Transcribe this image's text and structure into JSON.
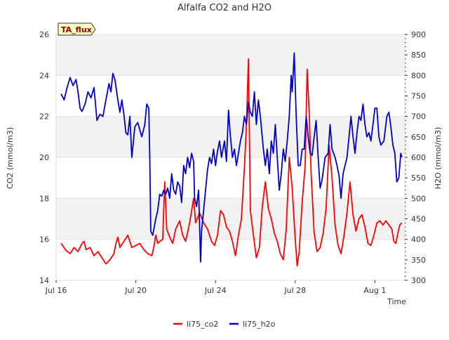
{
  "chart_data": {
    "type": "line",
    "title": "Alfalfa CO2 and H2O",
    "xlabel": "Time",
    "ylabel_left": "CO2 (mmol/m3)",
    "ylabel_right": "H2O (mmol/m3)",
    "badge": "TA_flux",
    "x_ticks": [
      "Jul 16",
      "Jul 20",
      "Jul 24",
      "Jul 28",
      "Aug 1"
    ],
    "x_tick_days": [
      0,
      4,
      8,
      12,
      16
    ],
    "xlim_days": [
      0,
      17.5
    ],
    "ylim_left": [
      14,
      26
    ],
    "yticks_left": [
      14,
      16,
      18,
      20,
      22,
      24,
      26
    ],
    "ylim_right": [
      300,
      900
    ],
    "yticks_right": [
      300,
      350,
      400,
      450,
      500,
      550,
      600,
      650,
      700,
      750,
      800,
      850,
      900
    ],
    "grid": "horizontal bands",
    "legend_position": "bottom-center",
    "series": [
      {
        "name": "li75_co2",
        "axis": "left",
        "color": "#ff0000",
        "points": [
          [
            0.25,
            15.8
          ],
          [
            0.5,
            15.45
          ],
          [
            0.7,
            15.3
          ],
          [
            0.9,
            15.6
          ],
          [
            1.1,
            15.4
          ],
          [
            1.3,
            15.8
          ],
          [
            1.4,
            15.9
          ],
          [
            1.5,
            15.5
          ],
          [
            1.7,
            15.6
          ],
          [
            1.9,
            15.2
          ],
          [
            2.1,
            15.4
          ],
          [
            2.3,
            15.1
          ],
          [
            2.5,
            14.8
          ],
          [
            2.7,
            15.0
          ],
          [
            2.9,
            15.3
          ],
          [
            3.0,
            15.8
          ],
          [
            3.1,
            16.1
          ],
          [
            3.2,
            15.6
          ],
          [
            3.4,
            15.9
          ],
          [
            3.6,
            16.2
          ],
          [
            3.8,
            15.6
          ],
          [
            4.0,
            15.7
          ],
          [
            4.2,
            15.8
          ],
          [
            4.4,
            15.5
          ],
          [
            4.6,
            15.3
          ],
          [
            4.8,
            15.2
          ],
          [
            4.9,
            15.6
          ],
          [
            5.0,
            16.2
          ],
          [
            5.1,
            15.8
          ],
          [
            5.2,
            15.9
          ],
          [
            5.35,
            16.0
          ],
          [
            5.45,
            18.8
          ],
          [
            5.55,
            16.5
          ],
          [
            5.7,
            16.1
          ],
          [
            5.85,
            15.8
          ],
          [
            6.0,
            16.5
          ],
          [
            6.2,
            16.9
          ],
          [
            6.35,
            16.2
          ],
          [
            6.5,
            15.9
          ],
          [
            6.7,
            16.8
          ],
          [
            6.9,
            18.0
          ],
          [
            7.0,
            16.8
          ],
          [
            7.2,
            17.3
          ],
          [
            7.4,
            16.8
          ],
          [
            7.6,
            16.5
          ],
          [
            7.8,
            15.9
          ],
          [
            7.95,
            15.7
          ],
          [
            8.1,
            16.2
          ],
          [
            8.25,
            17.4
          ],
          [
            8.4,
            17.2
          ],
          [
            8.55,
            16.6
          ],
          [
            8.7,
            16.4
          ],
          [
            8.85,
            15.9
          ],
          [
            9.0,
            15.2
          ],
          [
            9.15,
            16.2
          ],
          [
            9.3,
            17.0
          ],
          [
            9.45,
            19.5
          ],
          [
            9.55,
            21.5
          ],
          [
            9.65,
            24.8
          ],
          [
            9.75,
            17.4
          ],
          [
            9.9,
            16.2
          ],
          [
            10.05,
            15.1
          ],
          [
            10.2,
            15.6
          ],
          [
            10.35,
            17.6
          ],
          [
            10.5,
            18.8
          ],
          [
            10.65,
            17.5
          ],
          [
            10.8,
            17.0
          ],
          [
            10.95,
            16.3
          ],
          [
            11.1,
            15.9
          ],
          [
            11.25,
            15.3
          ],
          [
            11.4,
            15.0
          ],
          [
            11.55,
            16.5
          ],
          [
            11.7,
            20.0
          ],
          [
            11.85,
            18.5
          ],
          [
            12.0,
            16.0
          ],
          [
            12.1,
            14.7
          ],
          [
            12.2,
            15.4
          ],
          [
            12.35,
            17.8
          ],
          [
            12.5,
            19.6
          ],
          [
            12.6,
            24.3
          ],
          [
            12.7,
            22.2
          ],
          [
            12.8,
            19.2
          ],
          [
            12.95,
            16.3
          ],
          [
            13.1,
            15.4
          ],
          [
            13.25,
            15.6
          ],
          [
            13.4,
            16.3
          ],
          [
            13.55,
            17.5
          ],
          [
            13.7,
            20.6
          ],
          [
            13.85,
            19.0
          ],
          [
            14.0,
            16.7
          ],
          [
            14.15,
            15.7
          ],
          [
            14.3,
            15.3
          ],
          [
            14.45,
            16.2
          ],
          [
            14.6,
            17.3
          ],
          [
            14.75,
            18.8
          ],
          [
            14.9,
            17.2
          ],
          [
            15.05,
            16.4
          ],
          [
            15.2,
            17.0
          ],
          [
            15.35,
            17.2
          ],
          [
            15.5,
            16.6
          ],
          [
            15.65,
            15.8
          ],
          [
            15.8,
            15.7
          ],
          [
            15.95,
            16.2
          ],
          [
            16.1,
            16.8
          ],
          [
            16.25,
            16.9
          ],
          [
            16.4,
            16.7
          ],
          [
            16.55,
            16.9
          ],
          [
            16.7,
            16.7
          ],
          [
            16.85,
            16.5
          ],
          [
            16.95,
            15.9
          ],
          [
            17.05,
            15.8
          ],
          [
            17.15,
            16.3
          ],
          [
            17.25,
            16.7
          ],
          [
            17.35,
            16.8
          ]
        ]
      },
      {
        "name": "li75_h2o",
        "axis": "right",
        "color": "#0000cc",
        "points": [
          [
            0.25,
            755
          ],
          [
            0.4,
            740
          ],
          [
            0.55,
            770
          ],
          [
            0.7,
            795
          ],
          [
            0.85,
            775
          ],
          [
            1.0,
            790
          ],
          [
            1.1,
            760
          ],
          [
            1.2,
            720
          ],
          [
            1.3,
            712
          ],
          [
            1.45,
            730
          ],
          [
            1.6,
            760
          ],
          [
            1.75,
            745
          ],
          [
            1.9,
            770
          ],
          [
            2.05,
            690
          ],
          [
            2.2,
            705
          ],
          [
            2.35,
            700
          ],
          [
            2.5,
            740
          ],
          [
            2.65,
            780
          ],
          [
            2.75,
            760
          ],
          [
            2.85,
            805
          ],
          [
            2.95,
            790
          ],
          [
            3.1,
            740
          ],
          [
            3.2,
            710
          ],
          [
            3.3,
            740
          ],
          [
            3.4,
            705
          ],
          [
            3.5,
            660
          ],
          [
            3.6,
            655
          ],
          [
            3.7,
            700
          ],
          [
            3.8,
            600
          ],
          [
            3.95,
            675
          ],
          [
            4.1,
            685
          ],
          [
            4.3,
            650
          ],
          [
            4.45,
            680
          ],
          [
            4.55,
            730
          ],
          [
            4.65,
            720
          ],
          [
            4.7,
            600
          ],
          [
            4.75,
            420
          ],
          [
            4.85,
            410
          ],
          [
            5.0,
            450
          ],
          [
            5.1,
            470
          ],
          [
            5.2,
            510
          ],
          [
            5.3,
            505
          ],
          [
            5.4,
            520
          ],
          [
            5.5,
            510
          ],
          [
            5.6,
            525
          ],
          [
            5.7,
            500
          ],
          [
            5.8,
            560
          ],
          [
            5.9,
            520
          ],
          [
            6.0,
            510
          ],
          [
            6.1,
            540
          ],
          [
            6.2,
            530
          ],
          [
            6.3,
            490
          ],
          [
            6.4,
            580
          ],
          [
            6.5,
            560
          ],
          [
            6.6,
            600
          ],
          [
            6.7,
            575
          ],
          [
            6.8,
            610
          ],
          [
            6.9,
            590
          ],
          [
            6.95,
            500
          ],
          [
            7.05,
            480
          ],
          [
            7.15,
            520
          ],
          [
            7.25,
            345
          ],
          [
            7.3,
            420
          ],
          [
            7.4,
            470
          ],
          [
            7.5,
            520
          ],
          [
            7.6,
            570
          ],
          [
            7.7,
            600
          ],
          [
            7.8,
            585
          ],
          [
            7.9,
            620
          ],
          [
            8.0,
            580
          ],
          [
            8.1,
            615
          ],
          [
            8.2,
            640
          ],
          [
            8.3,
            600
          ],
          [
            8.45,
            640
          ],
          [
            8.55,
            590
          ],
          [
            8.65,
            715
          ],
          [
            8.75,
            650
          ],
          [
            8.85,
            600
          ],
          [
            8.95,
            620
          ],
          [
            9.05,
            580
          ],
          [
            9.15,
            610
          ],
          [
            9.25,
            640
          ],
          [
            9.35,
            660
          ],
          [
            9.45,
            700
          ],
          [
            9.55,
            680
          ],
          [
            9.65,
            735
          ],
          [
            9.75,
            710
          ],
          [
            9.85,
            700
          ],
          [
            9.95,
            760
          ],
          [
            10.05,
            680
          ],
          [
            10.15,
            740
          ],
          [
            10.25,
            700
          ],
          [
            10.4,
            620
          ],
          [
            10.5,
            580
          ],
          [
            10.6,
            620
          ],
          [
            10.7,
            560
          ],
          [
            10.8,
            640
          ],
          [
            10.9,
            610
          ],
          [
            11.0,
            680
          ],
          [
            11.1,
            600
          ],
          [
            11.2,
            520
          ],
          [
            11.3,
            560
          ],
          [
            11.4,
            620
          ],
          [
            11.5,
            590
          ],
          [
            11.6,
            640
          ],
          [
            11.7,
            700
          ],
          [
            11.8,
            800
          ],
          [
            11.85,
            760
          ],
          [
            11.95,
            855
          ],
          [
            12.05,
            700
          ],
          [
            12.15,
            580
          ],
          [
            12.25,
            580
          ],
          [
            12.35,
            620
          ],
          [
            12.45,
            620
          ],
          [
            12.55,
            700
          ],
          [
            12.65,
            650
          ],
          [
            12.75,
            610
          ],
          [
            12.85,
            605
          ],
          [
            12.95,
            650
          ],
          [
            13.05,
            690
          ],
          [
            13.15,
            600
          ],
          [
            13.25,
            525
          ],
          [
            13.35,
            545
          ],
          [
            13.5,
            600
          ],
          [
            13.65,
            610
          ],
          [
            13.75,
            680
          ],
          [
            13.85,
            620
          ],
          [
            14.0,
            600
          ],
          [
            14.1,
            580
          ],
          [
            14.2,
            555
          ],
          [
            14.3,
            500
          ],
          [
            14.4,
            560
          ],
          [
            14.5,
            580
          ],
          [
            14.6,
            600
          ],
          [
            14.7,
            650
          ],
          [
            14.8,
            700
          ],
          [
            14.9,
            650
          ],
          [
            15.0,
            610
          ],
          [
            15.1,
            660
          ],
          [
            15.2,
            700
          ],
          [
            15.3,
            690
          ],
          [
            15.4,
            730
          ],
          [
            15.5,
            680
          ],
          [
            15.6,
            650
          ],
          [
            15.7,
            660
          ],
          [
            15.8,
            640
          ],
          [
            15.9,
            680
          ],
          [
            16.0,
            720
          ],
          [
            16.1,
            720
          ],
          [
            16.2,
            650
          ],
          [
            16.3,
            630
          ],
          [
            16.45,
            640
          ],
          [
            16.6,
            700
          ],
          [
            16.7,
            710
          ],
          [
            16.8,
            675
          ],
          [
            16.9,
            630
          ],
          [
            17.0,
            610
          ],
          [
            17.1,
            540
          ],
          [
            17.2,
            550
          ],
          [
            17.3,
            610
          ],
          [
            17.35,
            600
          ]
        ]
      }
    ]
  }
}
